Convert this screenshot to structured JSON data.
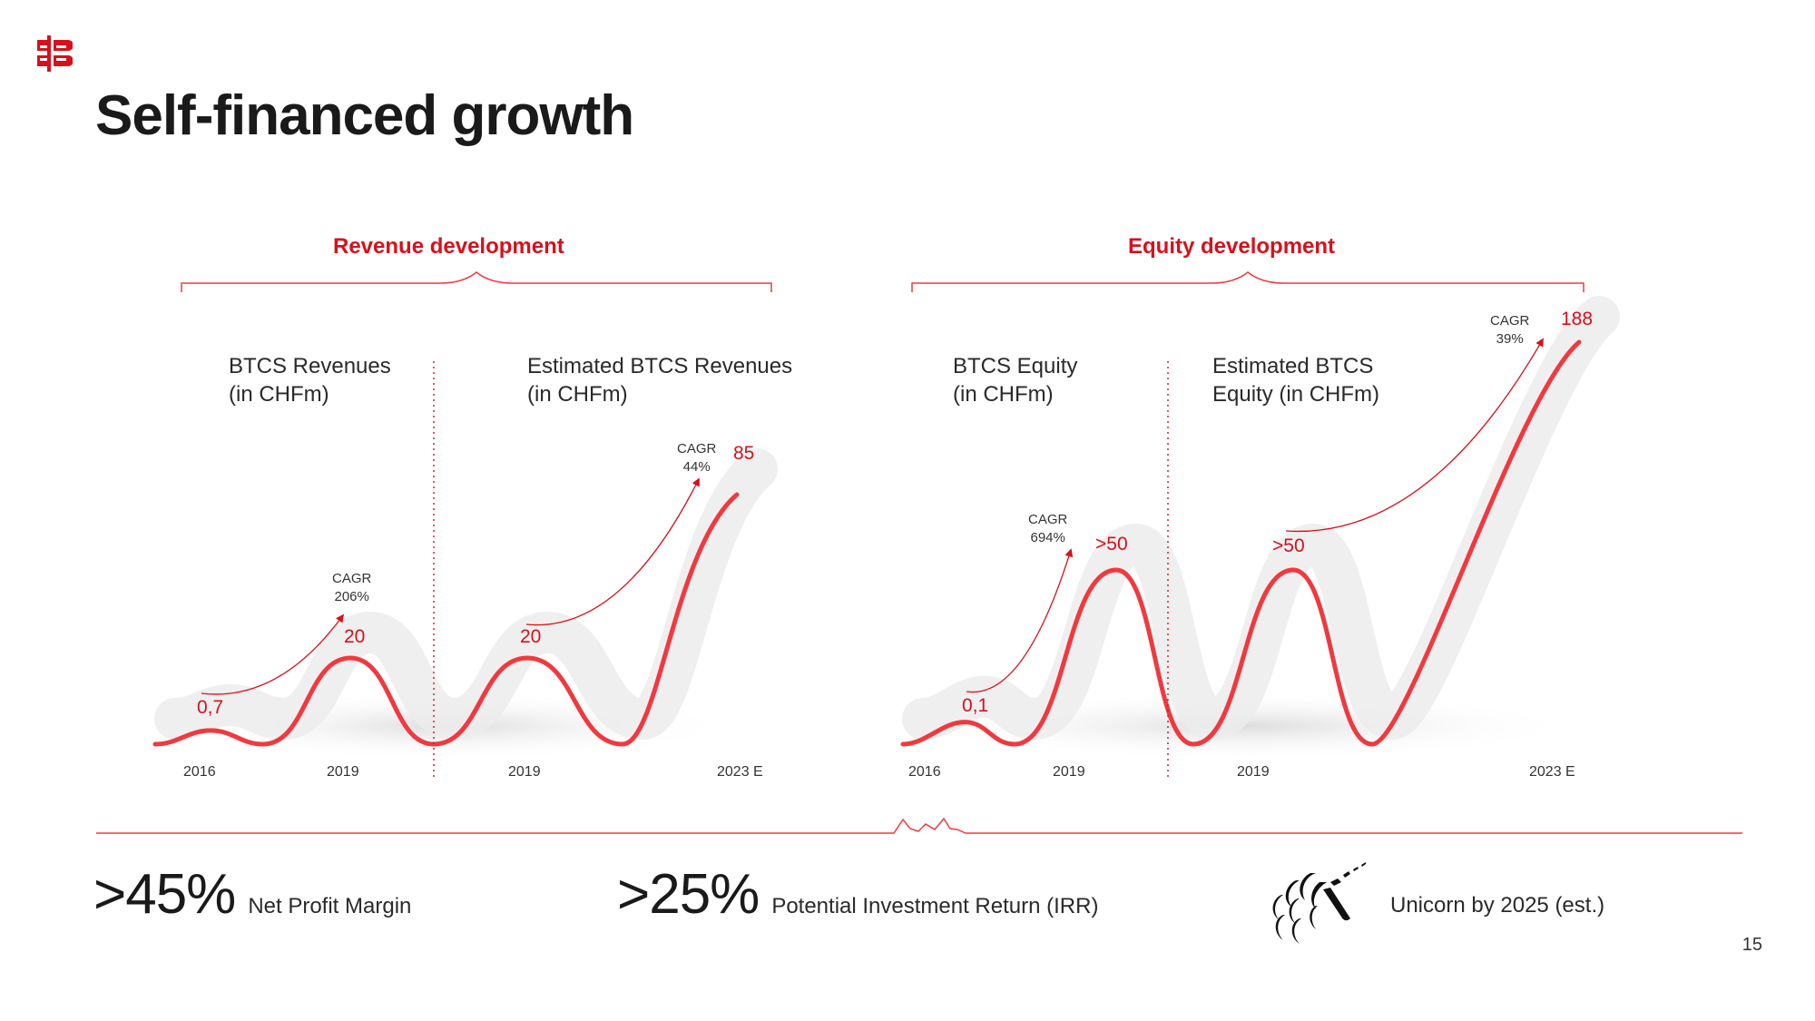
{
  "header": {
    "logo": "btcs-logo-icon",
    "title": "Self-financed growth"
  },
  "colors": {
    "accent": "#d8101b",
    "line": "#f0393f",
    "ribbon": "#ececec",
    "text": "#1a1a1a"
  },
  "chart_data": [
    {
      "type": "line",
      "title": "Revenue development",
      "segments": [
        {
          "label": "BTCS Revenues\n(in CHFm)",
          "x": [
            "2016",
            "2019"
          ],
          "values": [
            0.7,
            20
          ],
          "value_labels": [
            "0,7",
            "20"
          ],
          "cagr_label": "CAGR\n206%"
        },
        {
          "label": "Estimated BTCS Revenues\n(in CHFm)",
          "x": [
            "2019",
            "2023 E"
          ],
          "values": [
            20,
            85
          ],
          "value_labels": [
            "20",
            "85"
          ],
          "cagr_label": "CAGR\n44%"
        }
      ],
      "xticks": [
        "2016",
        "2019",
        "2019",
        "2023 E"
      ],
      "unit": "CHFm",
      "grid": false
    },
    {
      "type": "line",
      "title": "Equity development",
      "segments": [
        {
          "label": "BTCS Equity\n(in CHFm)",
          "x": [
            "2016",
            "2019"
          ],
          "values": [
            0.1,
            50
          ],
          "value_labels": [
            "0,1",
            ">50"
          ],
          "cagr_label": "CAGR\n694%"
        },
        {
          "label": "Estimated BTCS\nEquity (in CHFm)",
          "x": [
            "2019",
            "2023 E"
          ],
          "values": [
            50,
            188
          ],
          "value_labels": [
            ">50",
            "188"
          ],
          "cagr_label": "CAGR\n39%"
        }
      ],
      "xticks": [
        "2016",
        "2019",
        "2019",
        "2023 E"
      ],
      "unit": "CHFm",
      "grid": false
    }
  ],
  "kpis": [
    {
      "value": ">45%",
      "label": "Net Profit Margin"
    },
    {
      "value": ">25%",
      "label": "Potential Investment Return (IRR)"
    },
    {
      "icon": "unicorn-icon",
      "label": "Unicorn by 2025 (est.)"
    }
  ],
  "footer": {
    "page_number": "15"
  }
}
